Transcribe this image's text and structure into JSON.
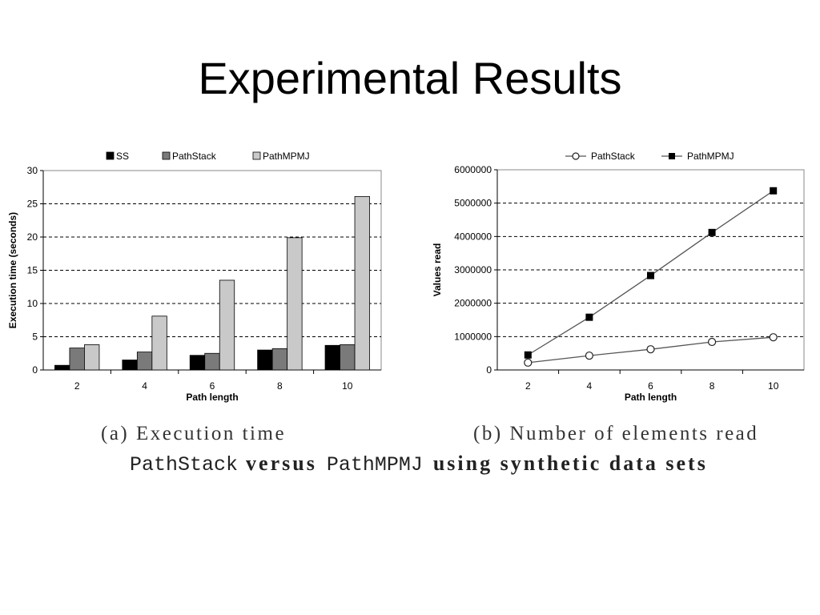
{
  "slide": {
    "title": "Experimental Results"
  },
  "captions": {
    "a": "(a) Execution time",
    "b": "(b) Number of elements read",
    "main": {
      "part1": "PathStack",
      "part2": "versus",
      "part3": "PathMPMJ",
      "part4": "using synthetic data sets"
    }
  },
  "chart_data": [
    {
      "type": "bar",
      "categories": [
        "2",
        "4",
        "6",
        "8",
        "10"
      ],
      "series": [
        {
          "name": "SS",
          "color": "#000000",
          "values": [
            0.7,
            1.5,
            2.2,
            3.0,
            3.7
          ]
        },
        {
          "name": "PathStack",
          "color": "#7a7a7a",
          "values": [
            3.3,
            2.7,
            2.5,
            3.2,
            3.8
          ]
        },
        {
          "name": "PathMPMJ",
          "color": "#c9c9c9",
          "values": [
            3.8,
            8.1,
            13.5,
            19.9,
            26.1
          ]
        }
      ],
      "xlabel": "Path length",
      "ylabel": "Execution time (seconds)",
      "ylim": [
        0,
        30
      ],
      "yticks": [
        0,
        5,
        10,
        15,
        20,
        25,
        30
      ],
      "grid": true,
      "legend": "top"
    },
    {
      "type": "line",
      "x": [
        2,
        4,
        6,
        8,
        10
      ],
      "series": [
        {
          "name": "PathStack",
          "marker": "open-circle",
          "color": "#555555",
          "values": [
            220000,
            430000,
            620000,
            840000,
            980000
          ]
        },
        {
          "name": "PathMPMJ",
          "marker": "filled-square",
          "color": "#555555",
          "values": [
            450000,
            1580000,
            2830000,
            4120000,
            5370000
          ]
        }
      ],
      "xlabel": "Path length",
      "ylabel": "Values read",
      "ylim": [
        0,
        6000000
      ],
      "yticks": [
        0,
        1000000,
        2000000,
        3000000,
        4000000,
        5000000,
        6000000
      ],
      "grid": true,
      "legend": "top"
    }
  ]
}
